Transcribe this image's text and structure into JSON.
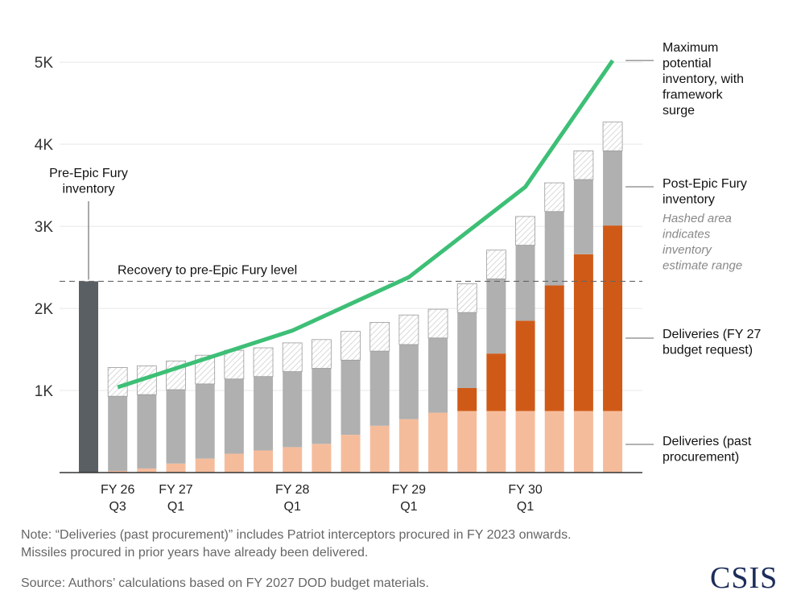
{
  "chart_data": {
    "type": "bar",
    "stacked": true,
    "y_tick_labels": [
      "1K",
      "2K",
      "3K",
      "4K",
      "5K"
    ],
    "y_tick_values": [
      1000,
      2000,
      3000,
      4000,
      5000
    ],
    "ylim": [
      0,
      5200
    ],
    "x_tick_labels": [
      {
        "index": 1,
        "lines": [
          "FY 26",
          "Q3"
        ]
      },
      {
        "index": 3,
        "lines": [
          "FY 27",
          "Q1"
        ]
      },
      {
        "index": 7,
        "lines": [
          "FY 28",
          "Q1"
        ]
      },
      {
        "index": 11,
        "lines": [
          "FY 29",
          "Q1"
        ]
      },
      {
        "index": 15,
        "lines": [
          "FY 30",
          "Q1"
        ]
      }
    ],
    "bar_count": 19,
    "pre_epic_fury_inventory": {
      "value": 2330,
      "color": "#5a5f63"
    },
    "series": [
      {
        "name": "Deliveries (past procurement)",
        "color": "#f5bc9c",
        "values": [
          null,
          20,
          50,
          110,
          170,
          230,
          270,
          310,
          350,
          460,
          570,
          650,
          730,
          750,
          750,
          750,
          750,
          750,
          750
        ]
      },
      {
        "name": "Deliveries (FY 27 budget request)",
        "color": "#cf5a17",
        "values": [
          null,
          0,
          0,
          0,
          0,
          0,
          0,
          0,
          0,
          0,
          0,
          0,
          0,
          280,
          700,
          1100,
          1530,
          1910,
          2260
        ]
      },
      {
        "name": "Post-Epic Fury inventory",
        "color": "#b0b0b0",
        "values": [
          null,
          910,
          900,
          900,
          910,
          910,
          900,
          920,
          920,
          910,
          910,
          910,
          910,
          920,
          910,
          920,
          900,
          910,
          910
        ]
      },
      {
        "name": "Hashed area indicates inventory estimate range",
        "color": "#e6e6e6",
        "values": [
          null,
          350,
          350,
          350,
          350,
          350,
          350,
          350,
          350,
          350,
          350,
          360,
          350,
          350,
          350,
          350,
          350,
          350,
          350
        ]
      }
    ],
    "line": {
      "name": "Maximum potential inventory, with framework surge",
      "color": "#3dbf76",
      "points": [
        {
          "x": 1,
          "y": 1040
        },
        {
          "x": 7,
          "y": 1730
        },
        {
          "x": 11,
          "y": 2380
        },
        {
          "x": 15,
          "y": 3480
        },
        {
          "x": 18,
          "y": 5020
        }
      ]
    },
    "reference_line": {
      "label": "Recovery to pre-Epic Fury level",
      "value": 2330
    },
    "annotations": {
      "pre_epic_fury": [
        "Pre-Epic Fury",
        "inventory"
      ],
      "max_inventory": [
        "Maximum",
        "potential",
        "inventory, with",
        "framework",
        "surge"
      ],
      "post_epic_fury": [
        "Post-Epic Fury",
        "inventory"
      ],
      "hashed_note": [
        "Hashed area",
        "indicates",
        "inventory",
        "estimate range"
      ],
      "deliveries_fy27": [
        "Deliveries (FY 27",
        "budget request)"
      ],
      "deliveries_past": [
        "Deliveries (past",
        "procurement)"
      ]
    }
  },
  "note_lines": [
    "Note: “Deliveries (past procurement)” includes Patriot interceptors procured in FY 2023 onwards.",
    "Missiles procured in prior years have already been delivered."
  ],
  "source": "Source: Authors’ calculations based on FY 2027 DOD budget materials.",
  "logo_text": "CSIS",
  "colors": {
    "grid": "#e8e8e8",
    "axis": "#333333",
    "hatch": "#c8c8c8",
    "hatch_outline": "#9a9a9a",
    "ref_line": "#666666"
  }
}
